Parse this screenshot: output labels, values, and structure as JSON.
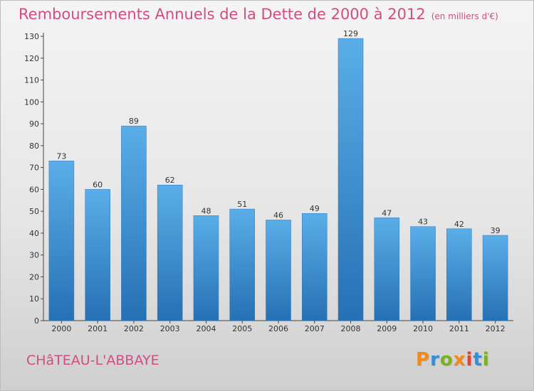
{
  "header": {
    "title": "Remboursements Annuels de la Dette de 2000 à 2012",
    "unit": "(en milliers d'€)"
  },
  "footer": {
    "place": "CHâTEAU-L'ABBAYE",
    "logo": "Proxiti"
  },
  "colors": {
    "title": "#d24d81",
    "bar_top": "#5aaee8",
    "bar_bottom": "#2670b4",
    "logo_letters": [
      "#f28a1a",
      "#2f8fd8",
      "#7ab317",
      "#f28a1a",
      "#e8422d",
      "#2f8fd8",
      "#7ab317"
    ]
  },
  "chart_data": {
    "type": "bar",
    "categories": [
      "2000",
      "2001",
      "2002",
      "2003",
      "2004",
      "2005",
      "2006",
      "2007",
      "2008",
      "2009",
      "2010",
      "2011",
      "2012"
    ],
    "values": [
      73,
      60,
      89,
      62,
      48,
      51,
      46,
      49,
      129,
      47,
      43,
      42,
      39
    ],
    "ylim": [
      0,
      130
    ],
    "yticks": [
      0,
      10,
      20,
      30,
      40,
      50,
      60,
      70,
      80,
      90,
      100,
      110,
      120,
      130
    ],
    "grid": false,
    "data_labels": true
  }
}
